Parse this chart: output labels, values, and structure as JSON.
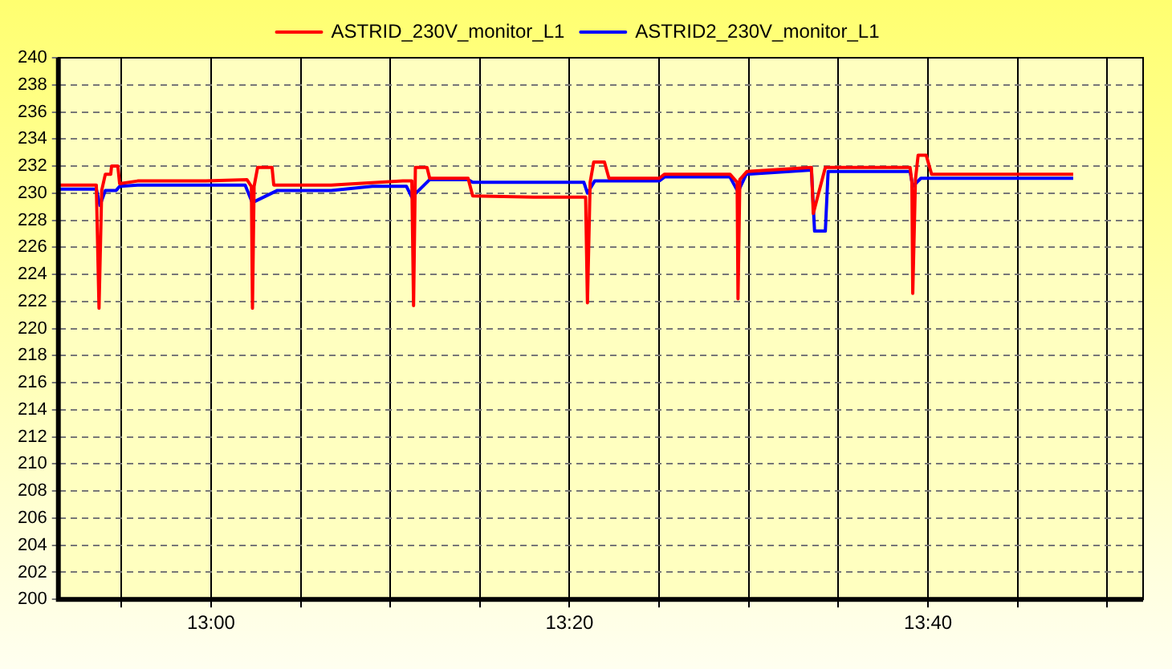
{
  "chart_data": {
    "type": "line",
    "legend": "top",
    "grid": true,
    "line_style": "solid",
    "marker": "none",
    "xlim": [
      12.858,
      13.8667
    ],
    "xticks": [
      {
        "value": 12.9167,
        "label": null
      },
      {
        "value": 13,
        "label": "13:00"
      },
      {
        "value": 13.0833,
        "label": null
      },
      {
        "value": 13.1667,
        "label": null
      },
      {
        "value": 13.25,
        "label": null
      },
      {
        "value": 13.3333,
        "label": "13:20"
      },
      {
        "value": 13.4167,
        "label": null
      },
      {
        "value": 13.5,
        "label": null
      },
      {
        "value": 13.5833,
        "label": null
      },
      {
        "value": 13.6667,
        "label": "13:40"
      },
      {
        "value": 13.75,
        "label": null
      },
      {
        "value": 13.8333,
        "label": null
      }
    ],
    "ylim": [
      200,
      240
    ],
    "yticks": [
      200,
      202,
      204,
      206,
      208,
      210,
      212,
      214,
      216,
      218,
      220,
      222,
      224,
      226,
      228,
      230,
      232,
      234,
      236,
      238,
      240
    ],
    "series": [
      {
        "name": "ASTRID_230V_monitor_L1",
        "color": "#ff0000",
        "x": [
          12.8583,
          12.8933,
          12.8958,
          12.8983,
          12.9017,
          12.9067,
          12.9075,
          12.9133,
          12.915,
          12.9317,
          12.995,
          13.0333,
          13.0375,
          13.0385,
          13.04,
          13.0433,
          13.0567,
          13.0583,
          13.1117,
          13.1783,
          13.1867,
          13.1883,
          13.19,
          13.2008,
          13.2033,
          13.239,
          13.2433,
          13.3,
          13.3483,
          13.35,
          13.3525,
          13.3558,
          13.3658,
          13.37,
          13.4167,
          13.4217,
          13.4825,
          13.4892,
          13.49,
          13.4917,
          13.4983,
          13.5583,
          13.56,
          13.5712,
          13.65,
          13.6517,
          13.6525,
          13.655,
          13.6575,
          13.665,
          13.67,
          13.8017
        ],
        "values": [
          230.6,
          230.6,
          221.5,
          230.2,
          231.4,
          231.4,
          232,
          232,
          230.7,
          230.9,
          230.9,
          231,
          230.5,
          221.5,
          230.5,
          231.9,
          231.9,
          230.6,
          230.6,
          230.9,
          230.9,
          221.7,
          231.9,
          231.9,
          231.1,
          231.1,
          229.8,
          229.7,
          229.7,
          221.9,
          230.8,
          232.3,
          232.3,
          231.1,
          231.1,
          231.4,
          231.4,
          230.8,
          222.2,
          231,
          231.6,
          231.9,
          228.5,
          231.9,
          231.9,
          230.8,
          222.6,
          231,
          232.8,
          232.8,
          231.4,
          231.4
        ]
      },
      {
        "name": "ASTRID2_230V_monitor_L1",
        "color": "#0000ff",
        "x": [
          12.8583,
          12.8933,
          12.8967,
          12.9017,
          12.9117,
          12.915,
          12.9317,
          13.0317,
          13.0383,
          13.0617,
          13.1117,
          13.15,
          13.1817,
          13.1867,
          13.2033,
          13.239,
          13.2433,
          13.3467,
          13.35,
          13.3567,
          13.4167,
          13.4217,
          13.4825,
          13.49,
          13.4977,
          13.5583,
          13.5612,
          13.5712,
          13.5738,
          13.65,
          13.6525,
          13.66,
          13.8017
        ],
        "values": [
          230.3,
          230.3,
          229.1,
          230.2,
          230.2,
          230.5,
          230.6,
          230.6,
          229.3,
          230.2,
          230.2,
          230.5,
          230.5,
          229.7,
          231,
          231,
          230.8,
          230.8,
          230,
          230.9,
          230.9,
          231.2,
          231.2,
          230.1,
          231.4,
          231.7,
          227.2,
          227.2,
          231.6,
          231.6,
          230.5,
          231.1,
          231.1
        ]
      }
    ]
  }
}
